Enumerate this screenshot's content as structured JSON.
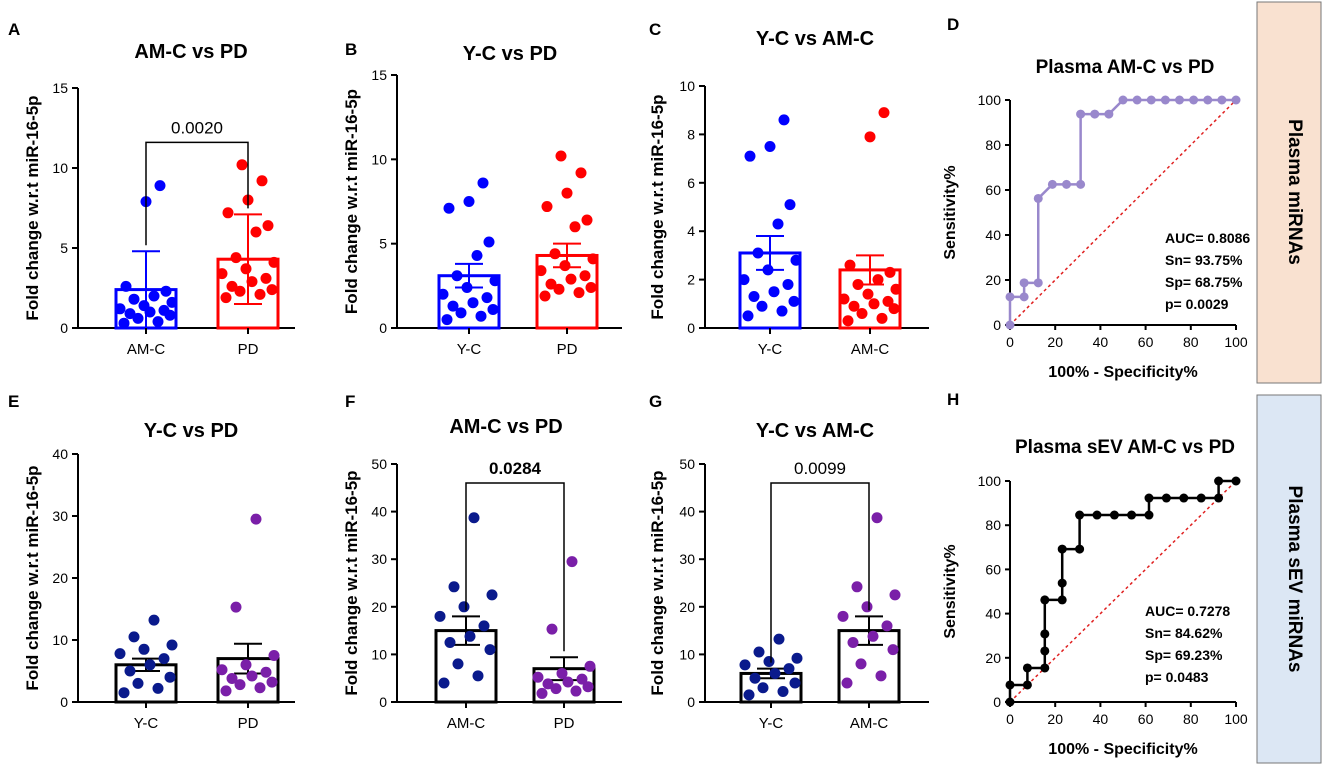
{
  "chart_data": [
    {
      "id": "A",
      "panel_label": "A",
      "type": "bar",
      "title": "AM-C vs PD",
      "ylabel": "Fold change w.r.t miR-16-5p",
      "ylim": [
        0,
        15
      ],
      "yticks": [
        0,
        5,
        10,
        15
      ],
      "categories": [
        "AM-C",
        "PD"
      ],
      "series": [
        {
          "name": "AM-C",
          "color": "#0000ff",
          "mean": 2.4,
          "err": 2.4,
          "err_type": "SD",
          "points": [
            0.3,
            0.4,
            0.6,
            0.8,
            0.9,
            1.0,
            1.1,
            1.2,
            1.4,
            1.6,
            1.8,
            2.0,
            2.3,
            2.6,
            7.9,
            8.9
          ]
        },
        {
          "name": "PD",
          "color": "#ff0000",
          "mean": 4.3,
          "err": 2.8,
          "err_type": "SD",
          "points": [
            1.9,
            2.1,
            2.3,
            2.4,
            2.6,
            2.9,
            3.1,
            3.4,
            3.7,
            4.1,
            4.4,
            6.0,
            6.4,
            7.2,
            8.0,
            9.2,
            10.2
          ]
        }
      ],
      "comparison": {
        "label": "0.0020",
        "bold": false,
        "y": 11.6
      }
    },
    {
      "id": "B",
      "panel_label": "B",
      "type": "bar",
      "title": "Y-C vs PD",
      "ylabel": "Fold change w.r.t miR-16-5p",
      "ylim": [
        0,
        15
      ],
      "yticks": [
        0,
        5,
        10,
        15
      ],
      "categories": [
        "Y-C",
        "PD"
      ],
      "series": [
        {
          "name": "Y-C",
          "color": "#0000ff",
          "mean": 3.1,
          "err": 0.7,
          "err_type": "SEM",
          "points": [
            0.5,
            0.7,
            0.9,
            1.1,
            1.3,
            1.5,
            1.8,
            2.0,
            2.4,
            2.8,
            3.1,
            4.3,
            5.1,
            7.1,
            7.5,
            8.6
          ]
        },
        {
          "name": "PD",
          "color": "#ff0000",
          "mean": 4.3,
          "err": 0.7,
          "err_type": "SEM",
          "points": [
            1.9,
            2.1,
            2.3,
            2.4,
            2.6,
            2.9,
            3.1,
            3.4,
            3.7,
            4.1,
            4.4,
            6.0,
            6.4,
            7.2,
            8.0,
            9.2,
            10.2
          ]
        }
      ]
    },
    {
      "id": "C",
      "panel_label": "C",
      "type": "bar",
      "title": "Y-C vs AM-C",
      "ylabel": "Fold change w.r.t miR-16-5p",
      "ylim": [
        0,
        10
      ],
      "yticks": [
        0,
        2,
        4,
        6,
        8,
        10
      ],
      "categories": [
        "Y-C",
        "AM-C"
      ],
      "series": [
        {
          "name": "Y-C",
          "color": "#0000ff",
          "mean": 3.1,
          "err": 0.7,
          "err_type": "SEM",
          "points": [
            0.5,
            0.7,
            0.9,
            1.1,
            1.3,
            1.5,
            1.8,
            2.0,
            2.4,
            2.8,
            3.1,
            4.3,
            5.1,
            7.1,
            7.5,
            8.6
          ]
        },
        {
          "name": "AM-C",
          "color": "#ff0000",
          "mean": 2.4,
          "err": 0.6,
          "err_type": "SEM",
          "points": [
            0.3,
            0.4,
            0.6,
            0.8,
            0.9,
            1.0,
            1.1,
            1.2,
            1.4,
            1.6,
            1.8,
            2.0,
            2.3,
            2.6,
            7.9,
            8.9
          ]
        }
      ]
    },
    {
      "id": "E",
      "panel_label": "E",
      "type": "bar",
      "title": "Y-C vs PD",
      "ylabel": "Fold change w.r.t miR-16-5p",
      "ylim": [
        0,
        40
      ],
      "yticks": [
        0,
        10,
        20,
        30,
        40
      ],
      "categories": [
        "Y-C",
        "PD"
      ],
      "series": [
        {
          "name": "Y-C",
          "color": "#0a1a8c",
          "mean": 6.0,
          "err": 1.0,
          "err_type": "SEM",
          "points": [
            1.5,
            2.2,
            3.0,
            4.0,
            5.0,
            6.0,
            7.0,
            7.8,
            8.5,
            9.2,
            10.5,
            13.2
          ]
        },
        {
          "name": "PD",
          "color": "#7a1fa8",
          "mean": 7.0,
          "err": 2.4,
          "err_type": "SEM",
          "points": [
            1.8,
            2.3,
            2.8,
            3.2,
            3.8,
            4.2,
            4.8,
            5.2,
            6.0,
            7.5,
            15.3,
            29.5
          ]
        }
      ]
    },
    {
      "id": "F",
      "panel_label": "F",
      "type": "bar",
      "title": "AM-C vs PD",
      "ylabel": "Fold change w.r.t miR-16-5p",
      "ylim": [
        0,
        50
      ],
      "yticks": [
        0,
        10,
        20,
        30,
        40,
        50
      ],
      "categories": [
        "AM-C",
        "PD"
      ],
      "series": [
        {
          "name": "AM-C",
          "color": "#0a1a8c",
          "mean": 15.0,
          "err": 3.0,
          "err_type": "SEM",
          "points": [
            4.0,
            5.5,
            8.0,
            11.0,
            12.5,
            13.8,
            16.0,
            18.0,
            20.0,
            22.5,
            24.2,
            38.7
          ]
        },
        {
          "name": "PD",
          "color": "#7a1fa8",
          "mean": 7.0,
          "err": 2.4,
          "err_type": "SEM",
          "points": [
            1.8,
            2.3,
            2.8,
            3.2,
            3.8,
            4.2,
            4.8,
            5.2,
            6.0,
            7.5,
            15.3,
            29.5
          ]
        }
      ],
      "comparison": {
        "label": "0.0284",
        "bold": true,
        "y": 46
      }
    },
    {
      "id": "G",
      "panel_label": "G",
      "type": "bar",
      "title": "Y-C vs AM-C",
      "ylabel": "Fold change w.r.t miR-16-5p",
      "ylim": [
        0,
        50
      ],
      "yticks": [
        0,
        10,
        20,
        30,
        40,
        50
      ],
      "categories": [
        "Y-C",
        "AM-C"
      ],
      "series": [
        {
          "name": "Y-C",
          "color": "#0a1a8c",
          "mean": 6.0,
          "err": 1.0,
          "err_type": "SEM",
          "points": [
            1.5,
            2.2,
            3.0,
            4.0,
            5.0,
            6.0,
            7.0,
            7.8,
            8.5,
            9.2,
            10.5,
            13.2
          ]
        },
        {
          "name": "AM-C",
          "color": "#7a1fa8",
          "mean": 15.0,
          "err": 3.0,
          "err_type": "SEM",
          "points": [
            4.0,
            5.5,
            8.0,
            11.0,
            12.5,
            13.8,
            16.0,
            18.0,
            20.0,
            22.5,
            24.2,
            38.7
          ]
        }
      ],
      "comparison": {
        "label": "0.0099",
        "bold": false,
        "y": 46
      }
    },
    {
      "id": "D",
      "panel_label": "D",
      "type": "line",
      "title": "Plasma AM-C vs PD",
      "xlabel": "100% - Specificity%",
      "ylabel": "Sensitivity%",
      "xlim": [
        0,
        100
      ],
      "ylim": [
        0,
        100
      ],
      "xticks": [
        0,
        20,
        40,
        60,
        80,
        100
      ],
      "yticks": [
        0,
        20,
        40,
        60,
        80,
        100
      ],
      "line_color": "#9988cc",
      "marker": "circle",
      "marker_fill": "#9988cc",
      "x": [
        0,
        0,
        6.25,
        6.25,
        12.5,
        12.5,
        18.75,
        25,
        31.25,
        31.25,
        37.5,
        43.75,
        50,
        56.25,
        62.5,
        68.75,
        75,
        81.25,
        87.5,
        93.75,
        100
      ],
      "y": [
        0,
        12.5,
        12.5,
        18.75,
        18.75,
        56.25,
        62.5,
        62.5,
        62.5,
        93.75,
        93.75,
        93.75,
        100,
        100,
        100,
        100,
        100,
        100,
        100,
        100,
        100
      ],
      "reference_line": true,
      "stats": [
        "AUC= 0.8086",
        "Sn= 93.75%",
        "Sp= 68.75%",
        "p= 0.0029"
      ]
    },
    {
      "id": "H",
      "panel_label": "H",
      "type": "line",
      "title": "Plasma sEV AM-C vs PD",
      "xlabel": "100% - Specificity%",
      "ylabel": "Sensitivity%",
      "xlim": [
        0,
        100
      ],
      "ylim": [
        0,
        100
      ],
      "xticks": [
        0,
        20,
        40,
        60,
        80,
        100
      ],
      "yticks": [
        0,
        20,
        40,
        60,
        80,
        100
      ],
      "line_color": "#000000",
      "marker": "circle",
      "marker_fill": "#000000",
      "x": [
        0,
        0,
        7.7,
        7.7,
        15.4,
        15.4,
        15.4,
        15.4,
        23.1,
        23.1,
        23.1,
        30.8,
        30.8,
        38.5,
        46.2,
        53.8,
        61.5,
        61.5,
        69.2,
        76.9,
        84.6,
        92.3,
        92.3,
        100
      ],
      "y": [
        0,
        7.7,
        7.7,
        15.4,
        15.4,
        23.1,
        30.8,
        46.2,
        46.2,
        53.8,
        69.2,
        69.2,
        84.6,
        84.6,
        84.6,
        84.6,
        84.6,
        92.3,
        92.3,
        92.3,
        92.3,
        92.3,
        100,
        100
      ],
      "reference_line": true,
      "stats": [
        "AUC= 0.7278",
        "Sn= 84.62%",
        "Sp= 69.23%",
        "p= 0.0483"
      ]
    }
  ],
  "side_labels": {
    "top": {
      "text": "Plasma miRNAs",
      "background": "#f9e1d0"
    },
    "bottom": {
      "text": "Plasma sEV miRNAs",
      "background": "#dce7f4"
    }
  }
}
